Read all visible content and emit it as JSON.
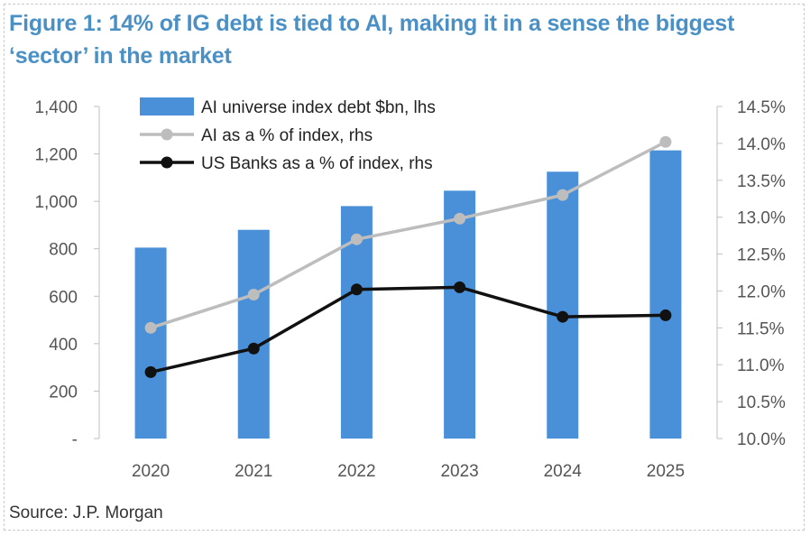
{
  "title": "Figure 1: 14% of IG debt is tied to AI, making it in a sense the biggest ‘sector’ in the market",
  "source": "Source: J.P. Morgan",
  "chart_data": {
    "type": "bar",
    "categories": [
      "2020",
      "2021",
      "2022",
      "2023",
      "2024",
      "2025"
    ],
    "series": [
      {
        "name": "AI universe index debt $bn, lhs",
        "type": "bar",
        "axis": "left",
        "values": [
          805,
          880,
          980,
          1045,
          1125,
          1215
        ],
        "color": "#4a90d9"
      },
      {
        "name": "AI as a % of index, rhs",
        "type": "line",
        "axis": "right",
        "values": [
          11.5,
          11.95,
          12.7,
          12.98,
          13.3,
          14.02
        ],
        "color": "#bdbdbd"
      },
      {
        "name": "US Banks as a % of index, rhs",
        "type": "line",
        "axis": "right",
        "values": [
          10.9,
          11.22,
          12.02,
          12.05,
          11.65,
          11.67
        ],
        "color": "#111111"
      }
    ],
    "ylim_left": [
      0,
      1400
    ],
    "yticks_left": [
      "-",
      "200",
      "400",
      "600",
      "800",
      "1,000",
      "1,200",
      "1,400"
    ],
    "ylim_right": [
      10.0,
      14.5
    ],
    "yticks_right": [
      "10.0%",
      "10.5%",
      "11.0%",
      "11.5%",
      "12.0%",
      "12.5%",
      "13.0%",
      "13.5%",
      "14.0%",
      "14.5%"
    ],
    "legend_position": "top-left",
    "grid": false
  }
}
